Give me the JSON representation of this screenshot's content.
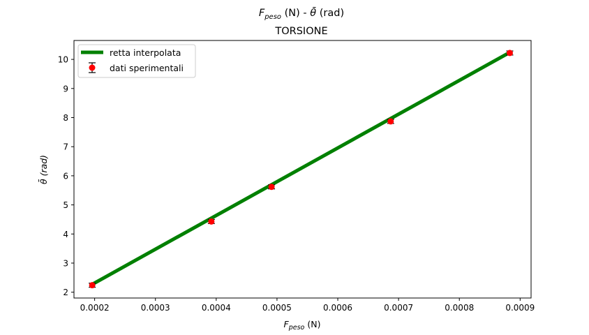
{
  "chart_data": {
    "type": "scatter",
    "title_main": "F_peso (N) - θ̄ (rad)",
    "title_main_parts": {
      "f": "F",
      "sub": "peso",
      "mid": " (N) - ",
      "theta": "θ̄",
      "end": " (rad)"
    },
    "subtitle": "TORSIONE",
    "xlabel": "F_peso (N)",
    "xlabel_parts": {
      "f": "F",
      "sub": "peso",
      "end": " (N)"
    },
    "ylabel": "θ̄ (rad)",
    "xlim": [
      0.000166,
      0.000918
    ],
    "ylim": [
      1.8,
      10.65
    ],
    "xticks": [
      0.0002,
      0.0003,
      0.0004,
      0.0005,
      0.0006,
      0.0007,
      0.0008,
      0.0009
    ],
    "xtick_labels": [
      "0.0002",
      "0.0003",
      "0.0004",
      "0.0005",
      "0.0006",
      "0.0007",
      "0.0008",
      "0.0009"
    ],
    "yticks": [
      2,
      3,
      4,
      5,
      6,
      7,
      8,
      9,
      10
    ],
    "ytick_labels": [
      "2",
      "3",
      "4",
      "5",
      "6",
      "7",
      "8",
      "9",
      "10"
    ],
    "grid": false,
    "legend_position": "upper-left",
    "series": [
      {
        "name": "retta interpolata",
        "kind": "line",
        "color": "#008000",
        "x": [
          0.000196,
          0.000883
        ],
        "y": [
          2.27,
          10.24
        ]
      },
      {
        "name": "dati sperimentali",
        "kind": "errorbar",
        "color": "#ff0000",
        "errcolor": "#000000",
        "x": [
          0.000196,
          0.000392,
          0.000491,
          0.000687,
          0.000883
        ],
        "y": [
          2.24,
          4.43,
          5.62,
          7.87,
          10.22
        ],
        "yerr": [
          0.07,
          0.07,
          0.07,
          0.07,
          0.07
        ],
        "xerr": [
          4e-06,
          4e-06,
          4e-06,
          4e-06,
          4e-06
        ]
      }
    ]
  }
}
